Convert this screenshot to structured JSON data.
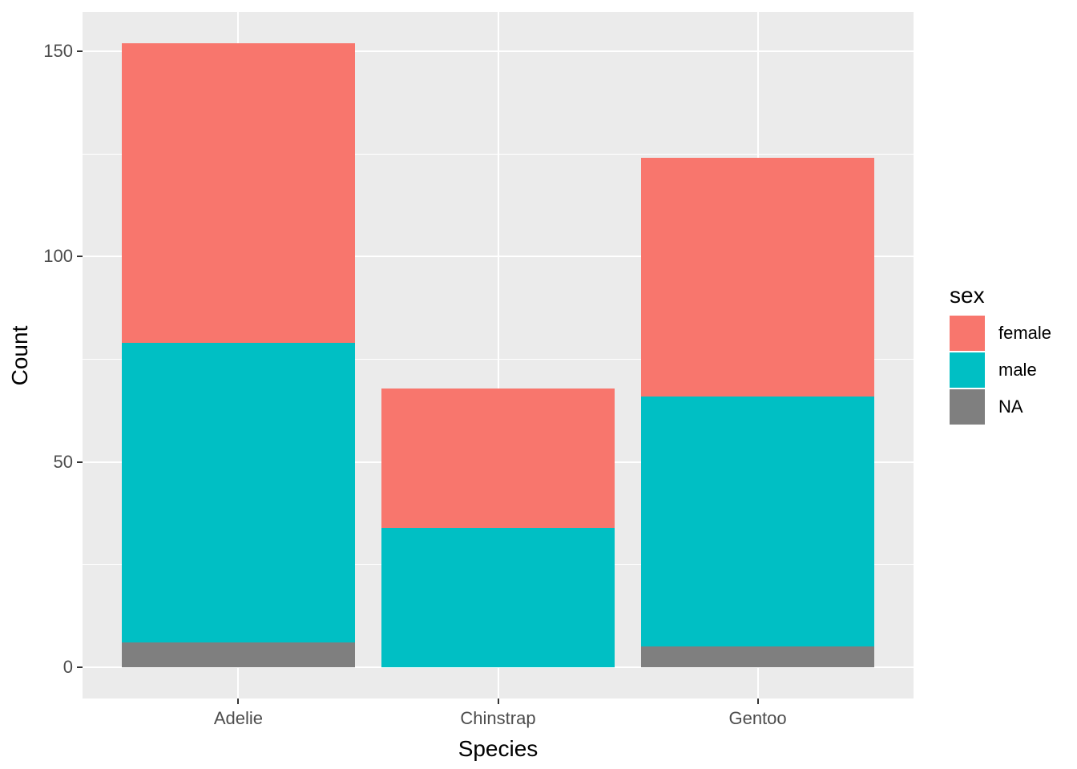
{
  "chart_data": {
    "type": "bar",
    "subtype": "stacked",
    "title": "",
    "xlabel": "Species",
    "ylabel": "Count",
    "categories": [
      "Adelie",
      "Chinstrap",
      "Gentoo"
    ],
    "series": [
      {
        "name": "female",
        "color": "#F8766D",
        "values": [
          73,
          34,
          58
        ]
      },
      {
        "name": "male",
        "color": "#00BFC4",
        "values": [
          73,
          34,
          61
        ]
      },
      {
        "name": "NA",
        "color": "#7F7F7F",
        "values": [
          6,
          0,
          5
        ]
      }
    ],
    "stack_totals": [
      152,
      68,
      124
    ],
    "stack_order_bottom_to_top": [
      "NA",
      "male",
      "female"
    ],
    "y_axis": {
      "major_ticks": [
        0,
        50,
        100,
        150
      ],
      "major_tick_labels": [
        "0",
        "50",
        "100",
        "150"
      ],
      "minor_ticks": [
        25,
        75,
        125
      ],
      "ylim": [
        0,
        152
      ]
    },
    "x_axis": {
      "tick_labels": [
        "Adelie",
        "Chinstrap",
        "Gentoo"
      ]
    },
    "legend": {
      "title": "sex",
      "position": "right",
      "entries": [
        "female",
        "male",
        "NA"
      ]
    },
    "grid": true,
    "style": {
      "figure_background": "#FFFFFF",
      "panel_background": "#EBEBEB",
      "grid_color": "#FFFFFF",
      "tick_mark_color": "#333333",
      "tick_label_color": "#4D4D4D",
      "axis_title_color": "#000000"
    }
  }
}
